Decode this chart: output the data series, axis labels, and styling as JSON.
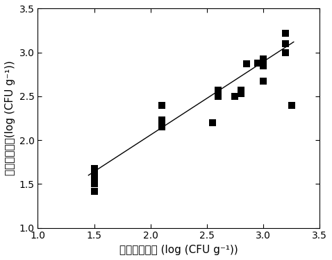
{
  "scatter_x": [
    1.5,
    1.5,
    1.5,
    1.5,
    1.5,
    1.5,
    1.5,
    2.1,
    2.1,
    2.1,
    2.1,
    2.1,
    2.55,
    2.6,
    2.6,
    2.75,
    2.8,
    2.8,
    2.85,
    2.95,
    3.0,
    3.0,
    3.0,
    3.2,
    3.2,
    3.2,
    3.25
  ],
  "scatter_y": [
    1.42,
    1.5,
    1.55,
    1.57,
    1.6,
    1.63,
    1.68,
    2.15,
    2.17,
    2.2,
    2.23,
    2.4,
    2.2,
    2.5,
    2.57,
    2.5,
    2.53,
    2.57,
    2.87,
    2.88,
    2.93,
    2.85,
    2.67,
    3.0,
    3.1,
    3.22,
    2.4
  ],
  "line_x": [
    1.45,
    3.27
  ],
  "line_y": [
    1.6,
    3.12
  ],
  "xlim": [
    1.0,
    3.5
  ],
  "ylim": [
    1.0,
    3.5
  ],
  "xticks": [
    1.0,
    1.5,
    2.0,
    2.5,
    3.0,
    3.5
  ],
  "yticks": [
    1.0,
    1.5,
    2.0,
    2.5,
    3.0,
    3.5
  ],
  "xlabel_cn": "菌落数实际值 ",
  "xlabel_en": "(log (CFU g⁻¹))",
  "ylabel_cn": "菌落数预测值",
  "ylabel_en": "(log (CFU g⁻¹))",
  "marker_color": "#000000",
  "line_color": "#000000",
  "background_color": "#ffffff",
  "marker_size": 55,
  "marker_style": "s",
  "linewidth": 1.0,
  "tick_fontsize": 10,
  "label_fontsize_cn": 11,
  "label_fontsize_en": 11
}
